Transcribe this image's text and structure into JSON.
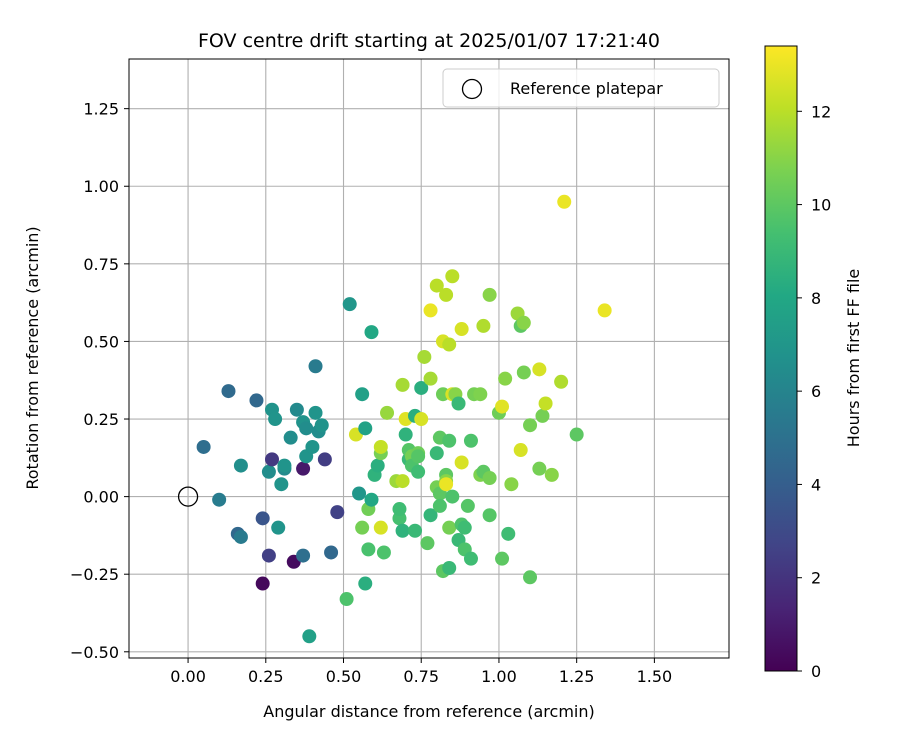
{
  "chart_data": {
    "type": "scatter",
    "title": "FOV centre drift starting at 2025/01/07 17:21:40",
    "xlabel": "Angular distance from reference (arcmin)",
    "ylabel": "Rotation from reference (arcmin)",
    "xlim": [
      -0.19,
      1.74
    ],
    "ylim": [
      -0.52,
      1.41
    ],
    "xticks": [
      "0.00",
      "0.25",
      "0.50",
      "0.75",
      "1.00",
      "1.25",
      "1.50"
    ],
    "xtick_values": [
      0,
      0.25,
      0.5,
      0.75,
      1.0,
      1.25,
      1.5
    ],
    "yticks": [
      "−0.50",
      "−0.25",
      "0.00",
      "0.25",
      "0.50",
      "0.75",
      "1.00",
      "1.25"
    ],
    "ytick_values": [
      -0.5,
      -0.25,
      0,
      0.25,
      0.5,
      0.75,
      1.0,
      1.25
    ],
    "grid": true,
    "legend": {
      "position": "top-right",
      "entries": [
        "Reference platepar"
      ]
    },
    "reference_point": {
      "x": 0.0,
      "y": 0.0,
      "label": "Reference platepar"
    },
    "colorbar": {
      "label": "Hours from first FF file",
      "colormap": "viridis",
      "range": [
        0,
        13.4
      ],
      "ticks": [
        "0",
        "2",
        "4",
        "6",
        "8",
        "10",
        "12"
      ],
      "tick_values": [
        0,
        2,
        4,
        6,
        8,
        10,
        12
      ]
    },
    "points": [
      {
        "x": 0.05,
        "y": 0.16,
        "c": 4.8
      },
      {
        "x": 0.1,
        "y": -0.01,
        "c": 5.6
      },
      {
        "x": 0.13,
        "y": 0.34,
        "c": 4.6
      },
      {
        "x": 0.16,
        "y": -0.12,
        "c": 4.5
      },
      {
        "x": 0.17,
        "y": 0.1,
        "c": 6.6
      },
      {
        "x": 0.17,
        "y": -0.13,
        "c": 5.5
      },
      {
        "x": 0.22,
        "y": 0.31,
        "c": 4.5
      },
      {
        "x": 0.24,
        "y": -0.07,
        "c": 3.5
      },
      {
        "x": 0.24,
        "y": -0.28,
        "c": 0.3
      },
      {
        "x": 0.26,
        "y": -0.19,
        "c": 2.5
      },
      {
        "x": 0.26,
        "y": 0.08,
        "c": 6.5
      },
      {
        "x": 0.27,
        "y": 0.12,
        "c": 2.2
      },
      {
        "x": 0.27,
        "y": 0.28,
        "c": 6.8
      },
      {
        "x": 0.28,
        "y": 0.25,
        "c": 6.9
      },
      {
        "x": 0.29,
        "y": -0.1,
        "c": 6.9
      },
      {
        "x": 0.3,
        "y": 0.04,
        "c": 6.9
      },
      {
        "x": 0.31,
        "y": 0.09,
        "c": 6.4
      },
      {
        "x": 0.31,
        "y": 0.1,
        "c": 6.9
      },
      {
        "x": 0.33,
        "y": 0.19,
        "c": 6.5
      },
      {
        "x": 0.34,
        "y": -0.21,
        "c": 0.4
      },
      {
        "x": 0.35,
        "y": 0.28,
        "c": 6.3
      },
      {
        "x": 0.37,
        "y": 0.09,
        "c": 0.9
      },
      {
        "x": 0.37,
        "y": -0.19,
        "c": 4.9
      },
      {
        "x": 0.37,
        "y": 0.24,
        "c": 6.8
      },
      {
        "x": 0.38,
        "y": 0.13,
        "c": 6.9
      },
      {
        "x": 0.38,
        "y": 0.22,
        "c": 6.5
      },
      {
        "x": 0.39,
        "y": -0.45,
        "c": 7.6
      },
      {
        "x": 0.4,
        "y": 0.16,
        "c": 6.9
      },
      {
        "x": 0.41,
        "y": 0.27,
        "c": 6.9
      },
      {
        "x": 0.41,
        "y": 0.42,
        "c": 5.5
      },
      {
        "x": 0.42,
        "y": 0.21,
        "c": 6.5
      },
      {
        "x": 0.43,
        "y": 0.23,
        "c": 6.8
      },
      {
        "x": 0.44,
        "y": 0.12,
        "c": 2.4
      },
      {
        "x": 0.46,
        "y": -0.18,
        "c": 4.5
      },
      {
        "x": 0.48,
        "y": -0.05,
        "c": 2.6
      },
      {
        "x": 0.51,
        "y": -0.33,
        "c": 9.6
      },
      {
        "x": 0.52,
        "y": 0.62,
        "c": 7.0
      },
      {
        "x": 0.54,
        "y": 0.2,
        "c": 12.6
      },
      {
        "x": 0.55,
        "y": 0.01,
        "c": 7.0
      },
      {
        "x": 0.56,
        "y": 0.33,
        "c": 7.6
      },
      {
        "x": 0.56,
        "y": -0.1,
        "c": 10.6
      },
      {
        "x": 0.57,
        "y": 0.22,
        "c": 7.7
      },
      {
        "x": 0.57,
        "y": -0.28,
        "c": 8.4
      },
      {
        "x": 0.58,
        "y": -0.17,
        "c": 9.5
      },
      {
        "x": 0.58,
        "y": -0.04,
        "c": 10.5
      },
      {
        "x": 0.59,
        "y": 0.53,
        "c": 8.0
      },
      {
        "x": 0.59,
        "y": -0.01,
        "c": 8.0
      },
      {
        "x": 0.6,
        "y": 0.07,
        "c": 8.6
      },
      {
        "x": 0.61,
        "y": 0.1,
        "c": 8.4
      },
      {
        "x": 0.62,
        "y": 0.14,
        "c": 10.6
      },
      {
        "x": 0.62,
        "y": -0.1,
        "c": 12.6
      },
      {
        "x": 0.62,
        "y": 0.16,
        "c": 12.2
      },
      {
        "x": 0.63,
        "y": -0.18,
        "c": 9.6
      },
      {
        "x": 0.64,
        "y": 0.27,
        "c": 11.3
      },
      {
        "x": 0.67,
        "y": 0.05,
        "c": 11.4
      },
      {
        "x": 0.68,
        "y": -0.07,
        "c": 9.4
      },
      {
        "x": 0.68,
        "y": -0.04,
        "c": 9.2
      },
      {
        "x": 0.69,
        "y": -0.11,
        "c": 8.6
      },
      {
        "x": 0.69,
        "y": 0.05,
        "c": 12.0
      },
      {
        "x": 0.69,
        "y": 0.36,
        "c": 11.6
      },
      {
        "x": 0.7,
        "y": 0.2,
        "c": 8.6
      },
      {
        "x": 0.7,
        "y": 0.25,
        "c": 12.8
      },
      {
        "x": 0.71,
        "y": 0.12,
        "c": 9.0
      },
      {
        "x": 0.71,
        "y": 0.15,
        "c": 9.8
      },
      {
        "x": 0.72,
        "y": 0.13,
        "c": 10.6
      },
      {
        "x": 0.72,
        "y": 0.1,
        "c": 9.6
      },
      {
        "x": 0.73,
        "y": -0.11,
        "c": 9.0
      },
      {
        "x": 0.73,
        "y": 0.26,
        "c": 8.4
      },
      {
        "x": 0.74,
        "y": 0.08,
        "c": 9.2
      },
      {
        "x": 0.74,
        "y": 0.14,
        "c": 10.4
      },
      {
        "x": 0.74,
        "y": 0.13,
        "c": 9.8
      },
      {
        "x": 0.75,
        "y": 0.35,
        "c": 8.4
      },
      {
        "x": 0.75,
        "y": 0.25,
        "c": 12.6
      },
      {
        "x": 0.76,
        "y": 0.45,
        "c": 11.6
      },
      {
        "x": 0.77,
        "y": -0.15,
        "c": 10.0
      },
      {
        "x": 0.78,
        "y": -0.06,
        "c": 8.8
      },
      {
        "x": 0.78,
        "y": 0.38,
        "c": 11.6
      },
      {
        "x": 0.78,
        "y": 0.6,
        "c": 13.0
      },
      {
        "x": 0.8,
        "y": 0.68,
        "c": 12.0
      },
      {
        "x": 0.8,
        "y": 0.14,
        "c": 9.0
      },
      {
        "x": 0.8,
        "y": 0.03,
        "c": 10.6
      },
      {
        "x": 0.81,
        "y": 0.19,
        "c": 10.0
      },
      {
        "x": 0.81,
        "y": 0.01,
        "c": 10.0
      },
      {
        "x": 0.81,
        "y": -0.03,
        "c": 9.6
      },
      {
        "x": 0.82,
        "y": 0.33,
        "c": 10.4
      },
      {
        "x": 0.82,
        "y": 0.5,
        "c": 12.6
      },
      {
        "x": 0.82,
        "y": -0.24,
        "c": 10.0
      },
      {
        "x": 0.83,
        "y": 0.65,
        "c": 12.0
      },
      {
        "x": 0.83,
        "y": 0.07,
        "c": 10.0
      },
      {
        "x": 0.83,
        "y": 0.05,
        "c": 11.0
      },
      {
        "x": 0.83,
        "y": 0.04,
        "c": 13.0
      },
      {
        "x": 0.84,
        "y": 0.49,
        "c": 12.0
      },
      {
        "x": 0.84,
        "y": 0.18,
        "c": 9.6
      },
      {
        "x": 0.84,
        "y": -0.23,
        "c": 9.0
      },
      {
        "x": 0.84,
        "y": -0.1,
        "c": 10.6
      },
      {
        "x": 0.85,
        "y": 0.71,
        "c": 12.0
      },
      {
        "x": 0.85,
        "y": 0.33,
        "c": 12.6
      },
      {
        "x": 0.85,
        "y": 0.0,
        "c": 9.6
      },
      {
        "x": 0.86,
        "y": 0.33,
        "c": 11.0
      },
      {
        "x": 0.87,
        "y": 0.3,
        "c": 9.0
      },
      {
        "x": 0.87,
        "y": -0.14,
        "c": 9.0
      },
      {
        "x": 0.88,
        "y": 0.54,
        "c": 12.6
      },
      {
        "x": 0.88,
        "y": 0.11,
        "c": 12.6
      },
      {
        "x": 0.88,
        "y": -0.09,
        "c": 9.6
      },
      {
        "x": 0.89,
        "y": -0.17,
        "c": 9.6
      },
      {
        "x": 0.89,
        "y": -0.1,
        "c": 9.2
      },
      {
        "x": 0.9,
        "y": -0.03,
        "c": 9.8
      },
      {
        "x": 0.91,
        "y": 0.18,
        "c": 9.6
      },
      {
        "x": 0.91,
        "y": -0.2,
        "c": 9.2
      },
      {
        "x": 0.92,
        "y": 0.33,
        "c": 10.6
      },
      {
        "x": 0.94,
        "y": 0.33,
        "c": 10.8
      },
      {
        "x": 0.94,
        "y": 0.07,
        "c": 10.8
      },
      {
        "x": 0.95,
        "y": 0.55,
        "c": 11.8
      },
      {
        "x": 0.95,
        "y": 0.08,
        "c": 10.0
      },
      {
        "x": 0.97,
        "y": 0.65,
        "c": 11.0
      },
      {
        "x": 0.97,
        "y": 0.06,
        "c": 10.6
      },
      {
        "x": 0.97,
        "y": -0.06,
        "c": 9.8
      },
      {
        "x": 1.0,
        "y": 0.27,
        "c": 10.4
      },
      {
        "x": 1.01,
        "y": 0.29,
        "c": 12.8
      },
      {
        "x": 1.01,
        "y": -0.2,
        "c": 10.0
      },
      {
        "x": 1.02,
        "y": 0.38,
        "c": 11.0
      },
      {
        "x": 1.03,
        "y": -0.12,
        "c": 9.2
      },
      {
        "x": 1.04,
        "y": 0.04,
        "c": 11.0
      },
      {
        "x": 1.06,
        "y": 0.59,
        "c": 11.4
      },
      {
        "x": 1.07,
        "y": 0.15,
        "c": 12.6
      },
      {
        "x": 1.07,
        "y": 0.55,
        "c": 10.0
      },
      {
        "x": 1.08,
        "y": 0.56,
        "c": 11.0
      },
      {
        "x": 1.08,
        "y": 0.4,
        "c": 10.6
      },
      {
        "x": 1.1,
        "y": 0.23,
        "c": 10.6
      },
      {
        "x": 1.1,
        "y": -0.26,
        "c": 10.0
      },
      {
        "x": 1.13,
        "y": 0.41,
        "c": 12.6
      },
      {
        "x": 1.13,
        "y": 0.09,
        "c": 10.6
      },
      {
        "x": 1.14,
        "y": 0.26,
        "c": 10.6
      },
      {
        "x": 1.15,
        "y": 0.3,
        "c": 12.2
      },
      {
        "x": 1.17,
        "y": 0.07,
        "c": 11.0
      },
      {
        "x": 1.2,
        "y": 0.37,
        "c": 11.8
      },
      {
        "x": 1.21,
        "y": 0.95,
        "c": 13.0
      },
      {
        "x": 1.25,
        "y": 0.2,
        "c": 10.0
      },
      {
        "x": 1.34,
        "y": 0.6,
        "c": 13.0
      }
    ]
  }
}
